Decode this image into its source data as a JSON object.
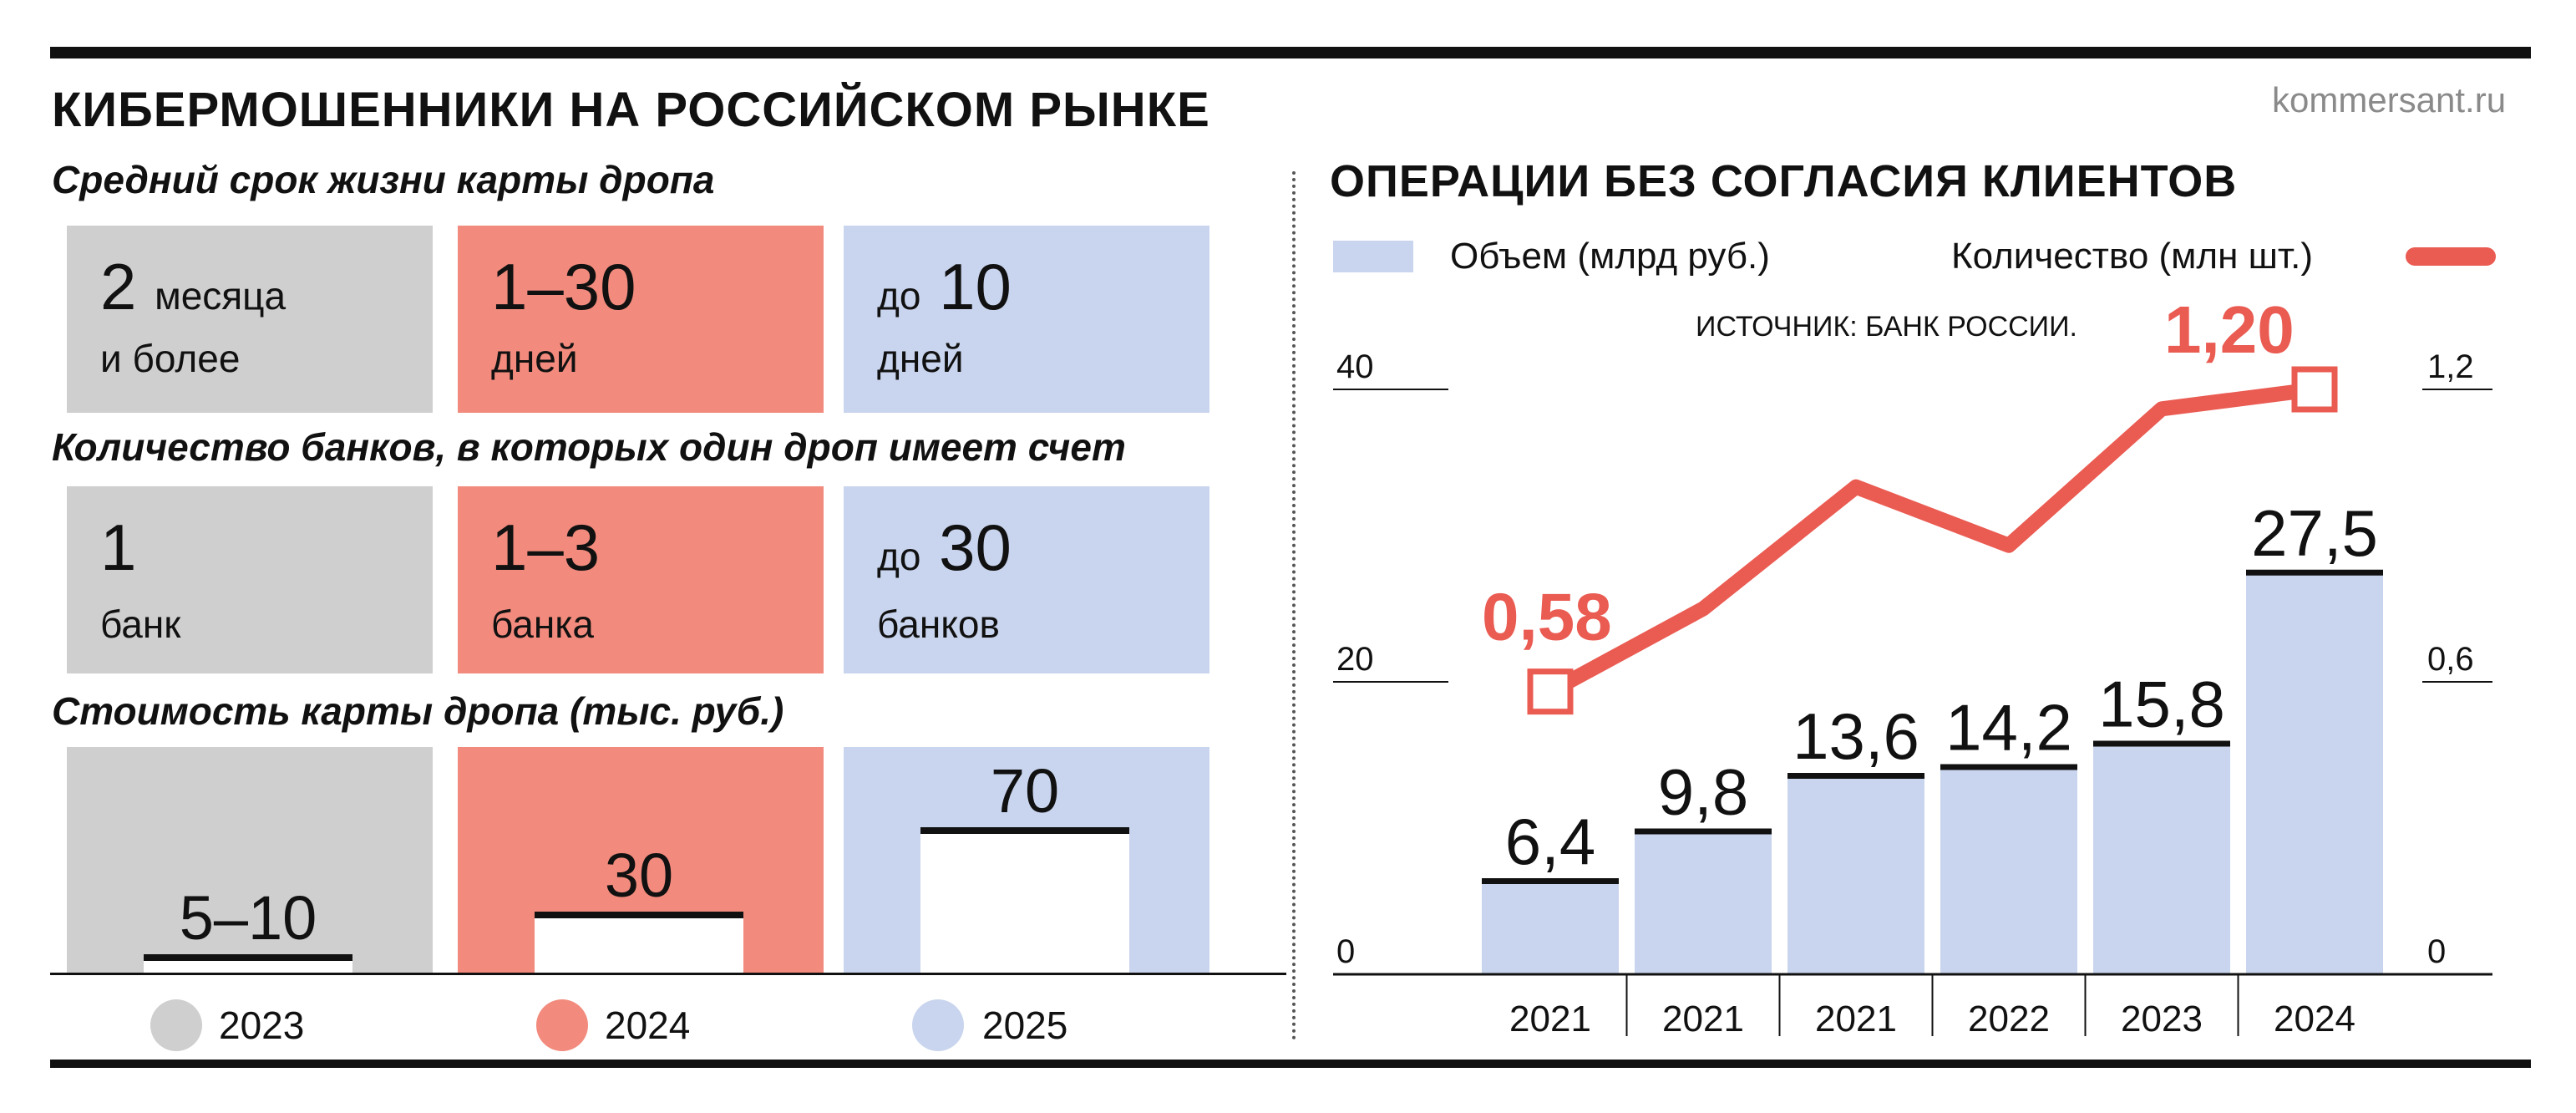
{
  "header": {
    "title": "КИБЕРМОШЕННИКИ НА РОССИЙСКОМ РЫНКЕ",
    "site": "kommersant.ru"
  },
  "colors": {
    "y2023": "#cfcfcf",
    "y2024": "#f28b7d",
    "y2025": "#c9d5ee",
    "line": "#ea5b52",
    "bars": "#c9d5ee"
  },
  "left": {
    "lifetime": {
      "title": "Средний срок жизни карты дропа",
      "cells": [
        {
          "prefix": "",
          "value": "2",
          "suffix": "месяца",
          "unit": "и более"
        },
        {
          "prefix": "",
          "value": "1–30",
          "suffix": "",
          "unit": "дней"
        },
        {
          "prefix": "до",
          "value": "10",
          "suffix": "",
          "unit": "дней"
        }
      ]
    },
    "banks": {
      "title": "Количество банков, в которых один дроп имеет счет",
      "cells": [
        {
          "prefix": "",
          "value": "1",
          "unit": "банк"
        },
        {
          "prefix": "",
          "value": "1–3",
          "unit": "банка"
        },
        {
          "prefix": "до",
          "value": "30",
          "unit": "банков"
        }
      ]
    },
    "cost": {
      "title": "Стоимость карты дропа (тыс. руб.)",
      "bars": [
        {
          "label": "5–10",
          "value": 7.5
        },
        {
          "label": "30",
          "value": 30
        },
        {
          "label": "70",
          "value": 70
        }
      ],
      "max": 70
    },
    "legend": [
      "2023",
      "2024",
      "2025"
    ]
  },
  "chart_data": {
    "type": "bar",
    "title": "ОПЕРАЦИИ БЕЗ СОГЛАСИЯ КЛИЕНТОВ",
    "source": "ИСТОЧНИК: БАНК РОССИИ.",
    "categories": [
      "2021",
      "2021",
      "2021",
      "2022",
      "2023",
      "2024"
    ],
    "series": [
      {
        "name": "Объем (млрд руб.)",
        "type": "bar",
        "axis": "left",
        "values": [
          6.4,
          9.8,
          13.6,
          14.2,
          15.8,
          27.5
        ],
        "labels": [
          "6,4",
          "9,8",
          "13,6",
          "14,2",
          "15,8",
          "27,5"
        ]
      },
      {
        "name": "Количество (млн шт.)",
        "type": "line",
        "axis": "right",
        "values": [
          0.58,
          0.75,
          1.0,
          0.88,
          1.16,
          1.2
        ],
        "labels": [
          "0,58",
          "",
          "",
          "",
          "",
          "1,20"
        ]
      }
    ],
    "y_left": {
      "ticks": [
        "0",
        "20",
        "40"
      ],
      "range": [
        0,
        40
      ]
    },
    "y_right": {
      "ticks": [
        "0",
        "0,6",
        "1,2"
      ],
      "range": [
        0,
        1.2
      ]
    },
    "legend": "top"
  }
}
